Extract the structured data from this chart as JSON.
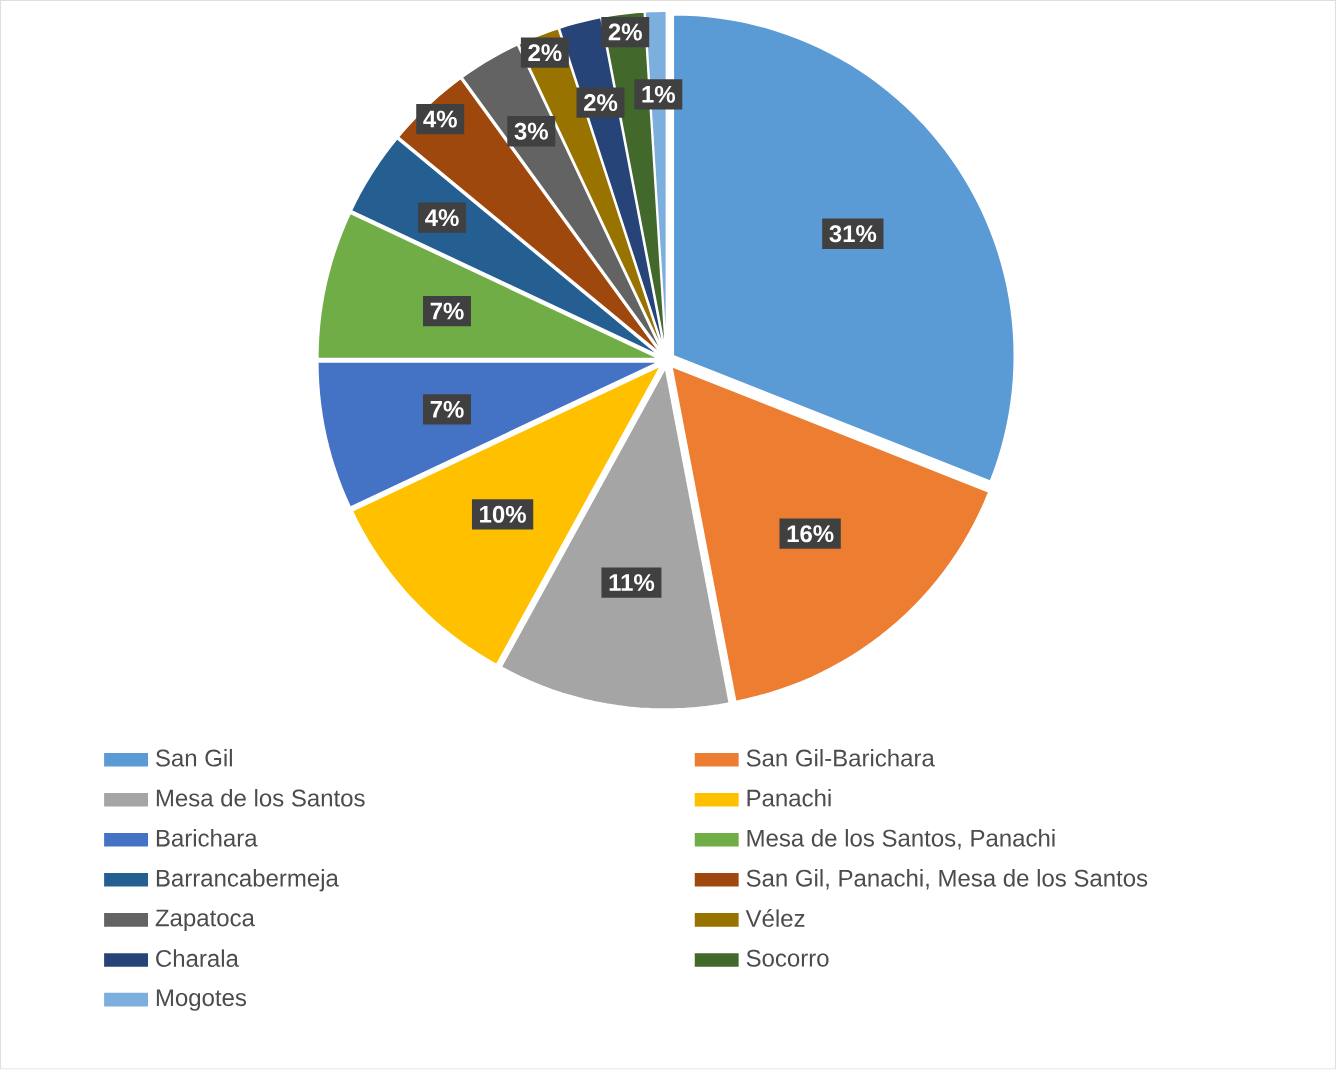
{
  "chart_data": {
    "type": "pie",
    "categories": [
      "San Gil",
      "San Gil-Barichara",
      "Mesa de los Santos",
      "Panachi",
      "Barichara",
      "Mesa de los Santos, Panachi",
      "Barrancabermeja",
      "San Gil, Panachi, Mesa de los Santos",
      "Zapatoca",
      "Vélez",
      "Charala",
      "Socorro",
      "Mogotes"
    ],
    "values": [
      31,
      16,
      11,
      10,
      7,
      7,
      4,
      4,
      3,
      2,
      2,
      2,
      1
    ],
    "value_labels": [
      "31%",
      "16%",
      "11%",
      "10%",
      "7%",
      "7%",
      "4%",
      "4%",
      "3%",
      "2%",
      "2%",
      "2%",
      "1%"
    ],
    "colors": [
      "#5b9bd5",
      "#ed7d31",
      "#a5a5a5",
      "#ffc000",
      "#4472c4",
      "#70ad47",
      "#255e91",
      "#9e480e",
      "#636363",
      "#997300",
      "#264478",
      "#43682b",
      "#7cafdd"
    ],
    "legend": "bottom"
  }
}
